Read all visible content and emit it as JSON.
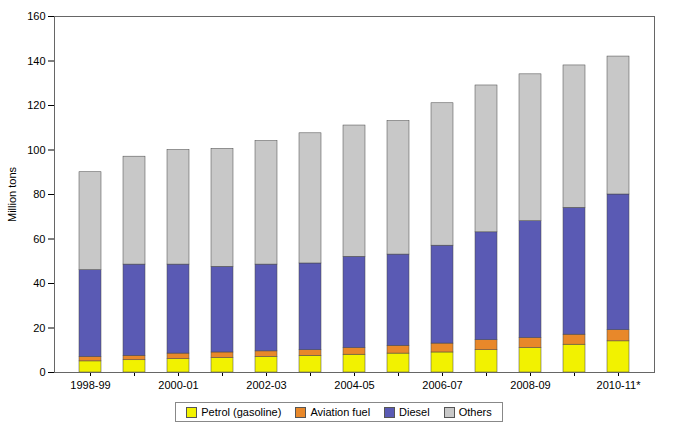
{
  "chart_data": {
    "type": "bar",
    "stacked": true,
    "y_label": "Million tons",
    "categories": [
      "1998-99",
      null,
      "2000-01",
      null,
      "2002-03",
      null,
      "2004-05",
      null,
      "2006-07",
      null,
      "2008-09",
      null,
      "2010-11*"
    ],
    "series": [
      {
        "name": "Petrol (gasoline)",
        "color": "#f2f200",
        "values": [
          5,
          5.5,
          6,
          6.5,
          7,
          7.5,
          8,
          8.5,
          9,
          10,
          11,
          12.5,
          14
        ]
      },
      {
        "name": "Aviation fuel",
        "color": "#e8882a",
        "values": [
          2,
          2,
          2.5,
          2.5,
          2.5,
          2.5,
          3,
          3.5,
          4,
          4.5,
          4.5,
          4.5,
          5
        ]
      },
      {
        "name": "Diesel",
        "color": "#5a5ab4",
        "values": [
          39,
          41,
          40,
          38.5,
          39,
          39,
          41,
          41,
          44,
          48.5,
          52.5,
          57,
          61
        ]
      },
      {
        "name": "Others",
        "color": "#c8c8c8",
        "values": [
          44,
          48.5,
          51.5,
          53,
          55.5,
          58.5,
          59,
          60,
          64,
          66,
          66,
          64,
          62
        ]
      }
    ],
    "ylim": [
      0,
      160
    ],
    "yticks": [
      0,
      20,
      40,
      60,
      80,
      100,
      120,
      140,
      160
    ],
    "grid": false,
    "legend": "bottom"
  }
}
